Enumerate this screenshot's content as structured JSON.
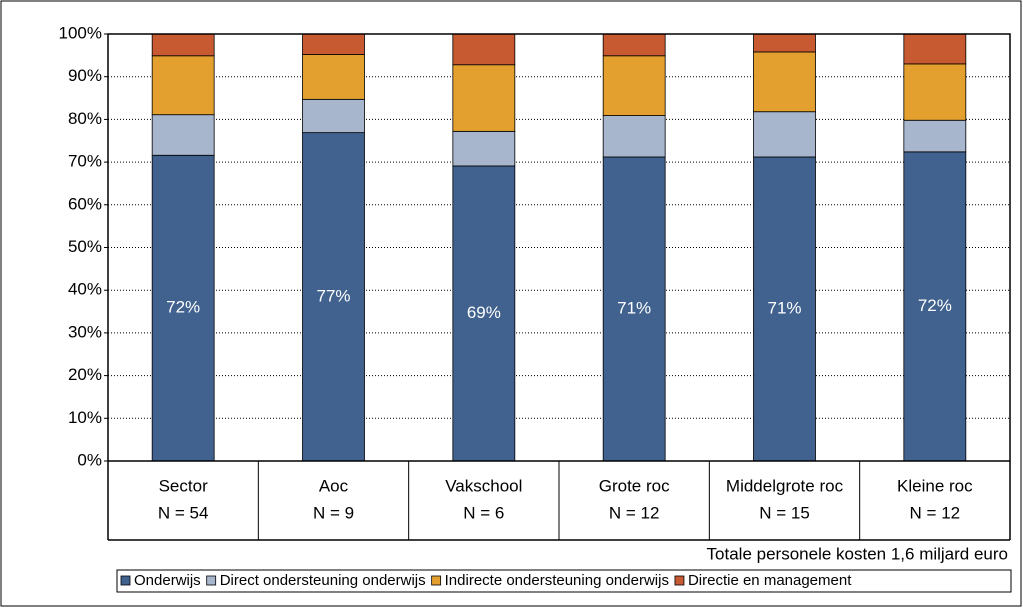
{
  "chart_data": {
    "type": "stacked_bar",
    "categories": [
      "Sector",
      "Aoc",
      "Vakschool",
      "Grote roc",
      "Middelgrote roc",
      "Kleine roc"
    ],
    "category_counts": [
      "N = 54",
      "N = 9",
      "N = 6",
      "N = 12",
      "N = 15",
      "N = 12"
    ],
    "note": "Totale personele kosten 1,6 miljard euro",
    "ylim": [
      0,
      100
    ],
    "yticks": [
      {
        "value": 0,
        "label": "0%"
      },
      {
        "value": 10,
        "label": "10%"
      },
      {
        "value": 20,
        "label": "20%"
      },
      {
        "value": 30,
        "label": "30%"
      },
      {
        "value": 40,
        "label": "40%"
      },
      {
        "value": 50,
        "label": "50%"
      },
      {
        "value": 60,
        "label": "60%"
      },
      {
        "value": 70,
        "label": "70%"
      },
      {
        "value": 80,
        "label": "80%"
      },
      {
        "value": 90,
        "label": "90%"
      },
      {
        "value": 100,
        "label": "100%"
      }
    ],
    "grid": true,
    "legend": "bottom",
    "series": [
      {
        "name": "Onderwijs",
        "color": "#41628f",
        "values": [
          71.6,
          76.9,
          69.1,
          71.2,
          71.2,
          72.4
        ],
        "value_labels": [
          "72%",
          "77%",
          "69%",
          "71%",
          "71%",
          "72%"
        ]
      },
      {
        "name": "Direct ondersteuning onderwijs",
        "color": "#a7b5cd",
        "values": [
          9.5,
          7.8,
          8.1,
          9.7,
          10.6,
          7.4
        ]
      },
      {
        "name": "Indirecte ondersteuning onderwijs",
        "color": "#e3a02f",
        "values": [
          13.8,
          10.5,
          15.6,
          14.0,
          14.0,
          13.2
        ]
      },
      {
        "name": "Directie en management",
        "color": "#c85a32",
        "values": [
          5.1,
          4.8,
          7.2,
          5.1,
          4.2,
          7.0
        ]
      }
    ]
  }
}
